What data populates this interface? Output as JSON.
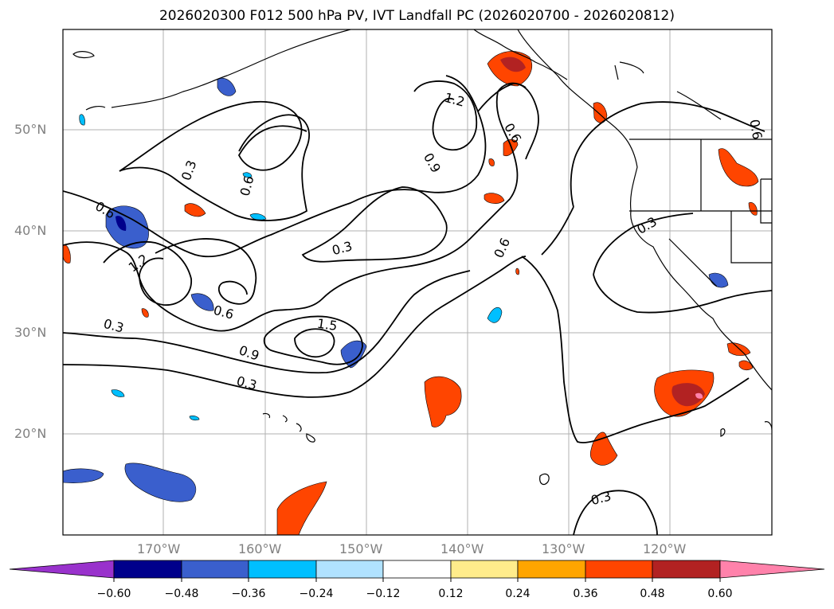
{
  "title": "2026020300 F012 500 hPa PV, IVT Landfall PC (2026020700 - 2026020812)",
  "axes": {
    "lat_labels": [
      "20°N",
      "30°N",
      "40°N",
      "50°N"
    ],
    "lon_labels": [
      "170°W",
      "160°W",
      "150°W",
      "140°W",
      "130°W",
      "120°W"
    ]
  },
  "contour_labels": [
    "0.3",
    "0.6",
    "0.6",
    "1.2",
    "0.9",
    "0.6",
    "0.6",
    "1.2",
    "0.3",
    "0.6",
    "1.5",
    "0.9",
    "0.3",
    "0.3",
    "0.3",
    "0.3",
    "0.6"
  ],
  "colorbar": {
    "ticks": [
      "−0.60",
      "−0.48",
      "−0.36",
      "−0.24",
      "−0.12",
      "0.12",
      "0.24",
      "0.36",
      "0.48",
      "0.60"
    ],
    "colors": [
      "#9932cc",
      "#00008b",
      "#3a5fcd",
      "#00bfff",
      "#b0e2ff",
      "#ffffff",
      "#ffec8b",
      "#ffa500",
      "#ff4500",
      "#b22222",
      "#ff82ab"
    ]
  }
}
